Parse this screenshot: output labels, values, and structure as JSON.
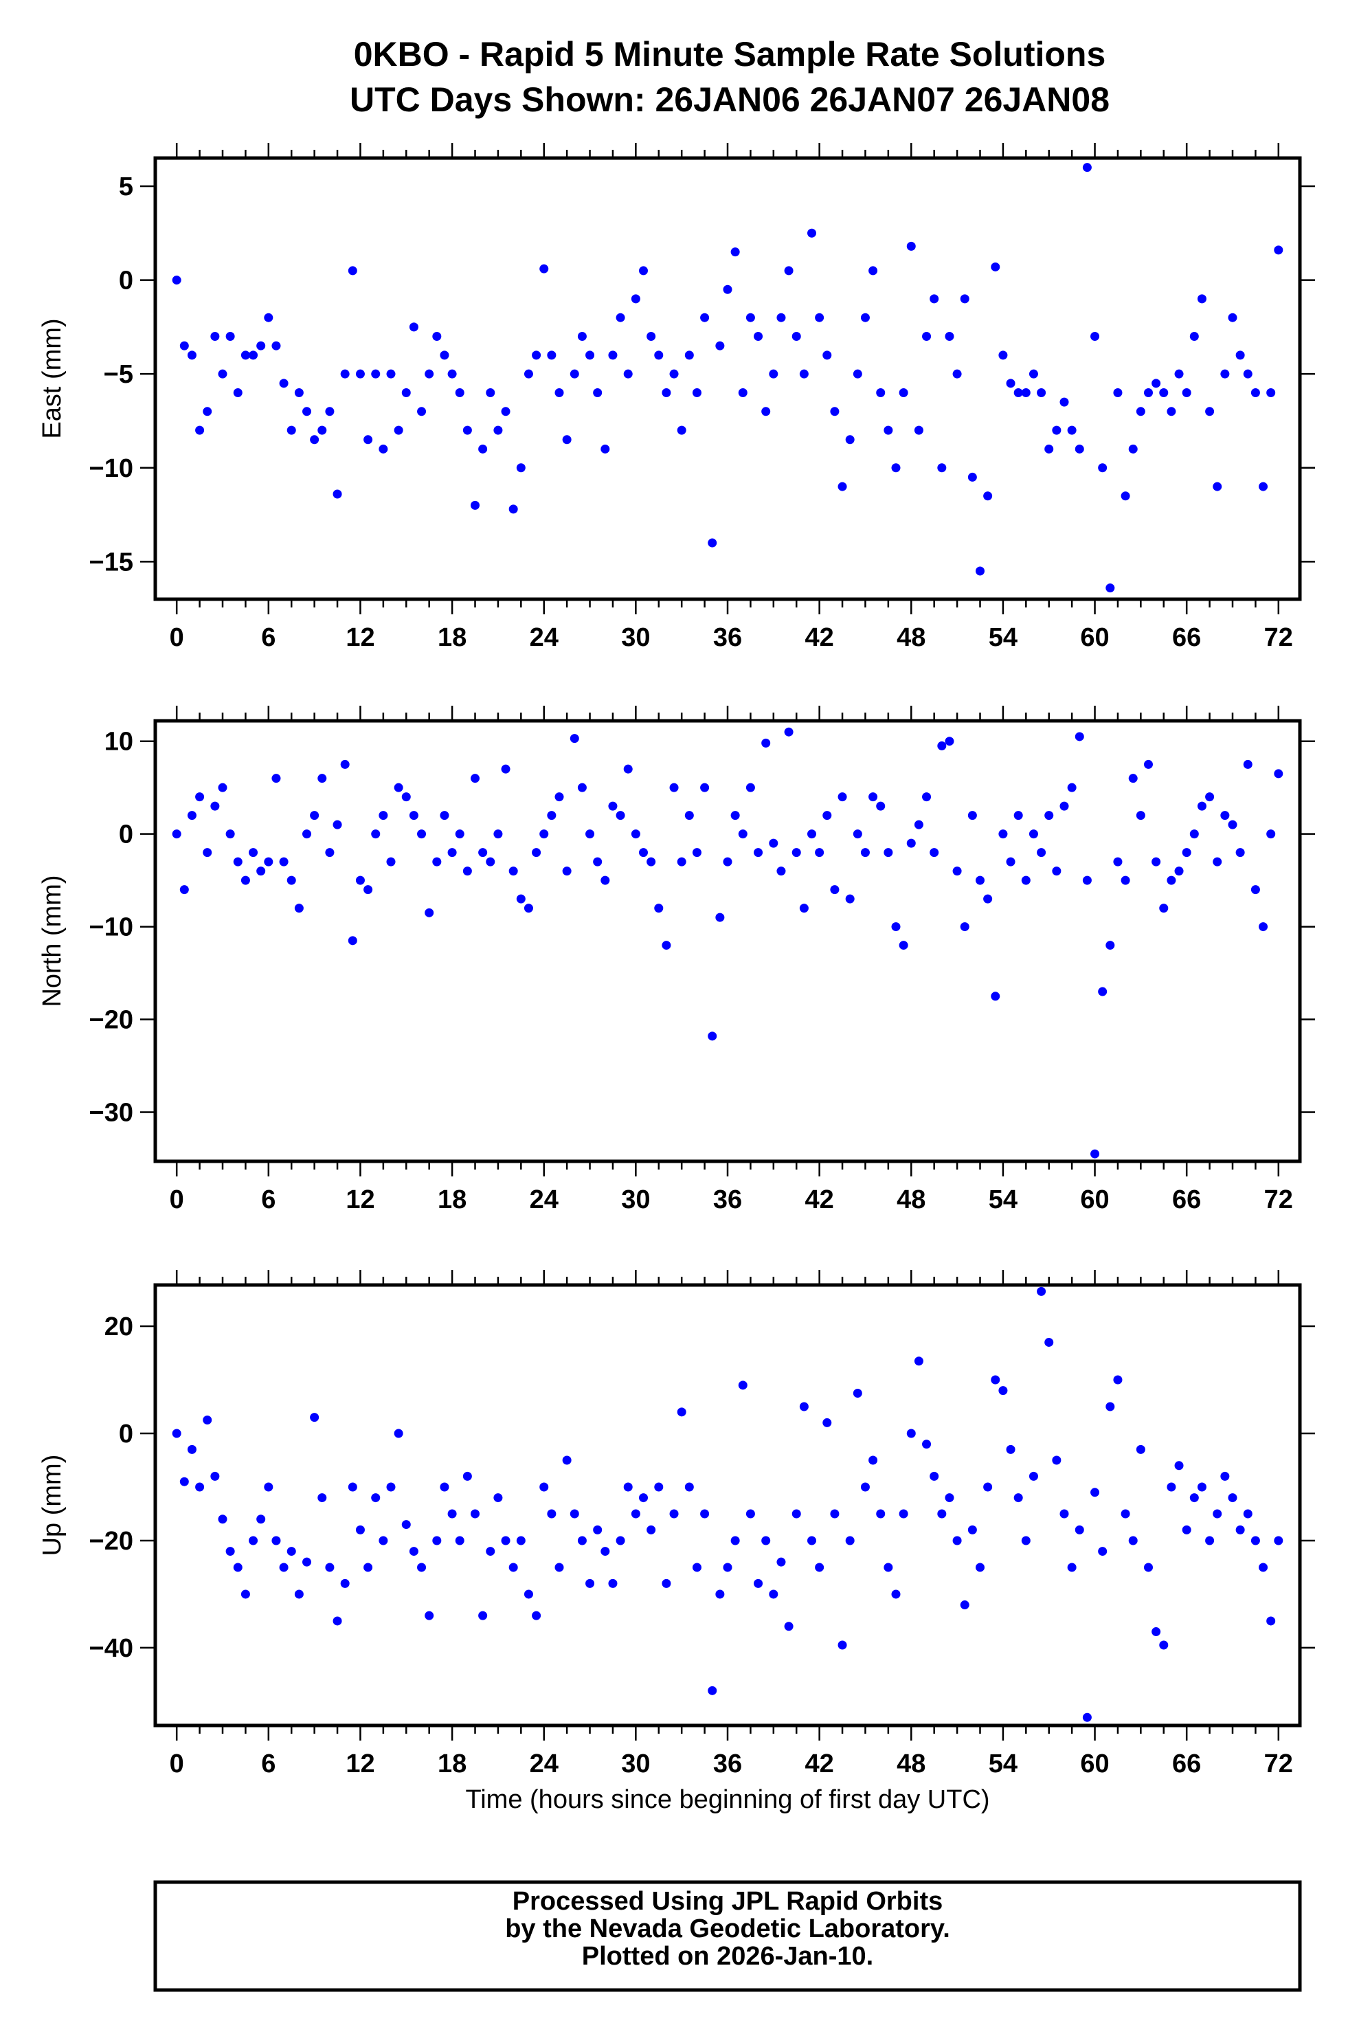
{
  "title_line1": "0KBO - Rapid 5 Minute Sample Rate Solutions",
  "title_line2": "UTC Days Shown:  26JAN06 26JAN07 26JAN08",
  "footer": {
    "line1": "Processed Using JPL Rapid Orbits",
    "line2": "by the Nevada Geodetic Laboratory.",
    "line3": "Plotted on 2026-Jan-10."
  },
  "colors": {
    "points": "#0000ff",
    "frame": "#000000"
  },
  "chart_data": [
    {
      "type": "scatter",
      "name": "east",
      "ylabel": "East (mm)",
      "xlabel": "",
      "xlim": [
        -1.4,
        73.4
      ],
      "ylim": [
        -17,
        6.5
      ],
      "xticks": [
        0,
        6,
        12,
        18,
        24,
        30,
        36,
        42,
        48,
        54,
        60,
        66,
        72
      ],
      "xtick_labels": [
        "0",
        "6",
        "12",
        "18",
        "24",
        "30",
        "36",
        "42",
        "48",
        "54",
        "60",
        "66",
        "72"
      ],
      "yticks": [
        5,
        0,
        -5,
        -10,
        -15
      ],
      "ytick_labels": [
        "5",
        "0",
        "−5",
        "−10",
        "−15"
      ],
      "x_step_hours": 0.5,
      "values": [
        0,
        -3.5,
        -4,
        -8,
        -7,
        -3,
        -5,
        -3,
        -6,
        -4,
        -4,
        -3.5,
        -2,
        -3.5,
        -5.5,
        -8,
        -6,
        -7,
        -8.5,
        -8,
        -7,
        -11.4,
        -5,
        0.5,
        -5,
        -8.5,
        -5,
        -9,
        -5,
        -8,
        -6,
        -2.5,
        -7,
        -5,
        -3,
        -4,
        -5,
        -6,
        -8,
        -12,
        -9,
        -6,
        -8,
        -7,
        -12.2,
        -10,
        -5,
        -4,
        0.6,
        -4,
        -6,
        -8.5,
        -5,
        -3,
        -4,
        -6,
        -9,
        -4,
        -2,
        -5,
        -1,
        0.5,
        -3,
        -4,
        -6,
        -5,
        -8,
        -4,
        -6,
        -2,
        -14,
        -3.5,
        -0.5,
        1.5,
        -6,
        -2,
        -3,
        -7,
        -5,
        -2,
        0.5,
        -3,
        -5,
        2.5,
        -2,
        -4,
        -7,
        -11,
        -8.5,
        -5,
        -2,
        0.5,
        -6,
        -8,
        -10,
        -6,
        1.8,
        -8,
        -3,
        -1,
        -10,
        -3,
        -5,
        -1,
        -10.5,
        -15.5,
        -11.5,
        0.7,
        -4,
        -5.5,
        -6,
        -6,
        -5,
        -6,
        -9,
        -8,
        -6.5,
        -8,
        -9,
        6,
        -3,
        -10,
        -16.4,
        -6,
        -11.5,
        -9,
        -7,
        -6,
        -5.5,
        -6,
        -7,
        -5,
        -6,
        -3,
        -1,
        -7,
        -11,
        -5,
        -2,
        -4,
        -5,
        -6,
        -11,
        -6,
        1.6
      ]
    },
    {
      "type": "scatter",
      "name": "north",
      "ylabel": "North (mm)",
      "xlabel": "",
      "xlim": [
        -1.4,
        73.4
      ],
      "ylim": [
        -35.3,
        12.2
      ],
      "xticks": [
        0,
        6,
        12,
        18,
        24,
        30,
        36,
        42,
        48,
        54,
        60,
        66,
        72
      ],
      "xtick_labels": [
        "0",
        "6",
        "12",
        "18",
        "24",
        "30",
        "36",
        "42",
        "48",
        "54",
        "60",
        "66",
        "72"
      ],
      "yticks": [
        10,
        0,
        -10,
        -20,
        -30
      ],
      "ytick_labels": [
        "10",
        "0",
        "−10",
        "−20",
        "−30"
      ],
      "x_step_hours": 0.5,
      "values": [
        0,
        -6,
        2,
        4,
        -2,
        3,
        5,
        0,
        -3,
        -5,
        -2,
        -4,
        -3,
        6,
        -3,
        -5,
        -8,
        0,
        2,
        6,
        -2,
        1,
        7.5,
        -11.5,
        -5,
        -6,
        0,
        2,
        -3,
        5,
        4,
        2,
        0,
        -8.5,
        -3,
        2,
        -2,
        0,
        -4,
        6,
        -2,
        -3,
        0,
        7,
        -4,
        -7,
        -8,
        -2,
        0,
        2,
        4,
        -4,
        10.3,
        5,
        0,
        -3,
        -5,
        3,
        2,
        7,
        0,
        -2,
        -3,
        -8,
        -12,
        5,
        -3,
        2,
        -2,
        5,
        -21.8,
        -9,
        -3,
        2,
        0,
        5,
        -2,
        9.8,
        -1,
        -4,
        11,
        -2,
        -8,
        0,
        -2,
        2,
        -6,
        4,
        -7,
        0,
        -2,
        4,
        3,
        -2,
        -10,
        -12,
        -1,
        1,
        4,
        -2,
        9.5,
        10,
        -4,
        -10,
        2,
        -5,
        -7,
        -17.5,
        0,
        -3,
        2,
        -5,
        0,
        -2,
        2,
        -4,
        3,
        5,
        10.5,
        -5,
        -34.5,
        -17,
        -12,
        -3,
        -5,
        6,
        2,
        7.5,
        -3,
        -8,
        -5,
        -4,
        -2,
        0,
        3,
        4,
        -3,
        2,
        1,
        -2,
        7.5,
        -6,
        -10,
        0,
        6.5
      ]
    },
    {
      "type": "scatter",
      "name": "up",
      "ylabel": "Up (mm)",
      "xlabel": "Time (hours since beginning of first day UTC)",
      "xlim": [
        -1.4,
        73.4
      ],
      "ylim": [
        -54.5,
        27.7
      ],
      "xticks": [
        0,
        6,
        12,
        18,
        24,
        30,
        36,
        42,
        48,
        54,
        60,
        66,
        72
      ],
      "xtick_labels": [
        "0",
        "6",
        "12",
        "18",
        "24",
        "30",
        "36",
        "42",
        "48",
        "54",
        "60",
        "66",
        "72"
      ],
      "yticks": [
        20,
        0,
        -20,
        -40
      ],
      "ytick_labels": [
        "20",
        "0",
        "−20",
        "−40"
      ],
      "x_step_hours": 0.5,
      "values": [
        0,
        -9,
        -3,
        -10,
        2.5,
        -8,
        -16,
        -22,
        -25,
        -30,
        -20,
        -16,
        -10,
        -20,
        -25,
        -22,
        -30,
        -24,
        3,
        -12,
        -25,
        -35,
        -28,
        -10,
        -18,
        -25,
        -12,
        -20,
        -10,
        0,
        -17,
        -22,
        -25,
        -34,
        -20,
        -10,
        -15,
        -20,
        -8,
        -15,
        -34,
        -22,
        -12,
        -20,
        -25,
        -20,
        -30,
        -34,
        -10,
        -15,
        -25,
        -5,
        -15,
        -20,
        -28,
        -18,
        -22,
        -28,
        -20,
        -10,
        -15,
        -12,
        -18,
        -10,
        -28,
        -15,
        4,
        -10,
        -25,
        -15,
        -48,
        -30,
        -25,
        -20,
        9,
        -15,
        -28,
        -20,
        -30,
        -24,
        -36,
        -15,
        5,
        -20,
        -25,
        2,
        -15,
        -39.5,
        -20,
        7.5,
        -10,
        -5,
        -15,
        -25,
        -30,
        -15,
        0,
        13.5,
        -2,
        -8,
        -15,
        -12,
        -20,
        -32,
        -18,
        -25,
        -10,
        10,
        8,
        -3,
        -12,
        -20,
        -8,
        26.5,
        17,
        -5,
        -15,
        -25,
        -18,
        -53,
        -11,
        -22,
        5,
        10,
        -15,
        -20,
        -3,
        -25,
        -37,
        -39.5,
        -10,
        -6,
        -18,
        -12,
        -10,
        -20,
        -15,
        -8,
        -12,
        -18,
        -15,
        -20,
        -25,
        -35,
        -20
      ]
    }
  ]
}
